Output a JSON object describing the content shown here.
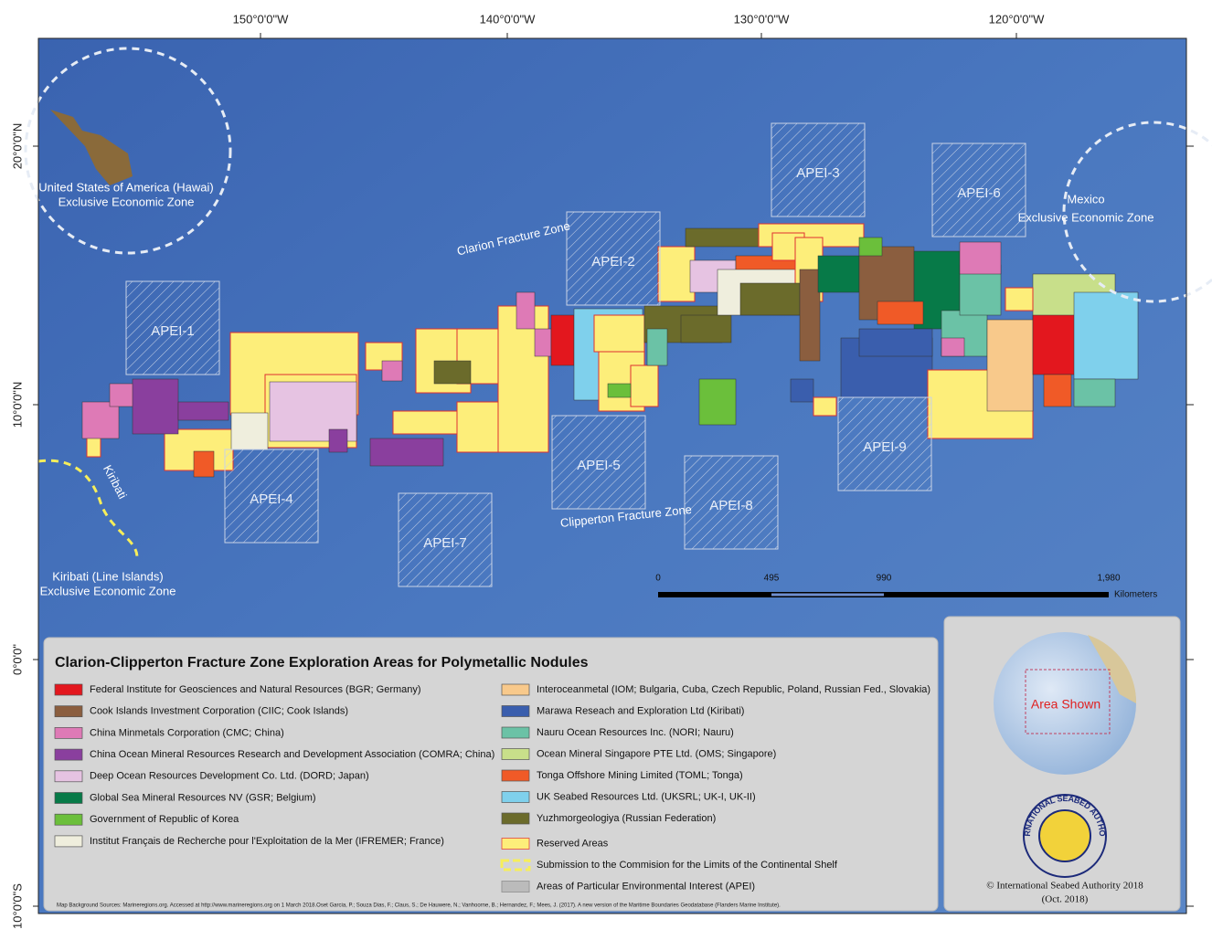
{
  "map": {
    "graticule": {
      "top": [
        "150°0'0\"W",
        "140°0'0\"W",
        "130°0'0\"W",
        "120°0'0\"W"
      ],
      "left": [
        "20°0'0\"N",
        "10°0'0\"N",
        "0°0'0\"",
        "10°0'0\"S"
      ]
    },
    "places": [
      "United States of America (Hawai)",
      "Exclusive Economic Zone",
      "Mexico",
      "Exclusive Economic Zone",
      "Kiribati (Line Islands)",
      "Exclusive Economic Zone",
      "Kiribati"
    ],
    "fracture_zones": [
      "Clarion Fracture Zone",
      "Clipperton Fracture Zone"
    ],
    "apei": [
      "APEI-1",
      "APEI-2",
      "APEI-3",
      "APEI-4",
      "APEI-5",
      "APEI-6",
      "APEI-7",
      "APEI-8",
      "APEI-9"
    ],
    "scale_bar": {
      "labels": [
        "0",
        "495",
        "990",
        "1,980"
      ],
      "unit": "Kilometers"
    }
  },
  "legend": {
    "title": "Clarion-Clipperton Fracture Zone Exploration Areas for Polymetallic Nodules",
    "items": [
      {
        "label": "Federal Institute for Geosciences and Natural Resources (BGR; Germany)",
        "color": "#e3171e"
      },
      {
        "label": "Cook Islands Investment Corporation (CIIC; Cook Islands)",
        "color": "#8b5e3f"
      },
      {
        "label": "China Minmetals Corporation (CMC; China)",
        "color": "#de7ab6"
      },
      {
        "label": "China Ocean Mineral Resources Research and Development Association (COMRA; China)",
        "color": "#8a3f9e"
      },
      {
        "label": "Deep Ocean Resources Development Co. Ltd. (DORD; Japan)",
        "color": "#e6c3e2"
      },
      {
        "label": "Global Sea Mineral Resources NV (GSR; Belgium)",
        "color": "#077a48"
      },
      {
        "label": "Government of Republic of Korea",
        "color": "#6bbf3b"
      },
      {
        "label": "Institut Français de Recherche pour l'Exploitation de la Mer (IFREMER; France)",
        "color": "#efeedd"
      },
      {
        "label": "Interoceanmetal (IOM; Bulgaria, Cuba, Czech Republic, Poland, Russian Fed., Slovakia)",
        "color": "#f8c98b"
      },
      {
        "label": "Marawa Reseach and Exploration Ltd (Kiribati)",
        "color": "#3a5ead"
      },
      {
        "label": "Nauru Ocean Resources Inc. (NORI; Nauru)",
        "color": "#6bc2a6"
      },
      {
        "label": "Ocean Mineral Singapore PTE Ltd. (OMS; Singapore)",
        "color": "#c8df8a"
      },
      {
        "label": "Tonga Offshore Mining Limited (TOML; Tonga)",
        "color": "#f05a27"
      },
      {
        "label": "UK Seabed Resources Ltd. (UKSRL; UK-I, UK-II)",
        "color": "#7fd0ec"
      },
      {
        "label": "Yuzhmorgeologiya (Russian Federation)",
        "color": "#6b6b2b"
      },
      {
        "label": "Reserved Areas",
        "color": "#fdee7a"
      },
      {
        "label": "Submission to the Commision for the Limits of the Continental Shelf",
        "color": "#f6ee5a"
      },
      {
        "label": "Areas of Particular Environmental Interest (APEI)",
        "color": "#cccccc"
      }
    ],
    "sources": "Map Background Sources: Marineregions.org. Accessed at http://www.marineregions.org on 1 March 2018.Oset Garcia, P.; Souza Dias, F.; Claus, S.; De Hauwere, N.; Vanhoorne, B.; Hernandez, F.; Mees, J. (2017). A new version of the Maritime Boundaries Geodatabase (Flanders Marine Institute)."
  },
  "inset": {
    "label": "Area Shown",
    "logo": "INTERNATIONAL SEABED AUTHORITY",
    "copyright": [
      "© International Seabed Authority 2018",
      "(Oct. 2018)"
    ]
  }
}
